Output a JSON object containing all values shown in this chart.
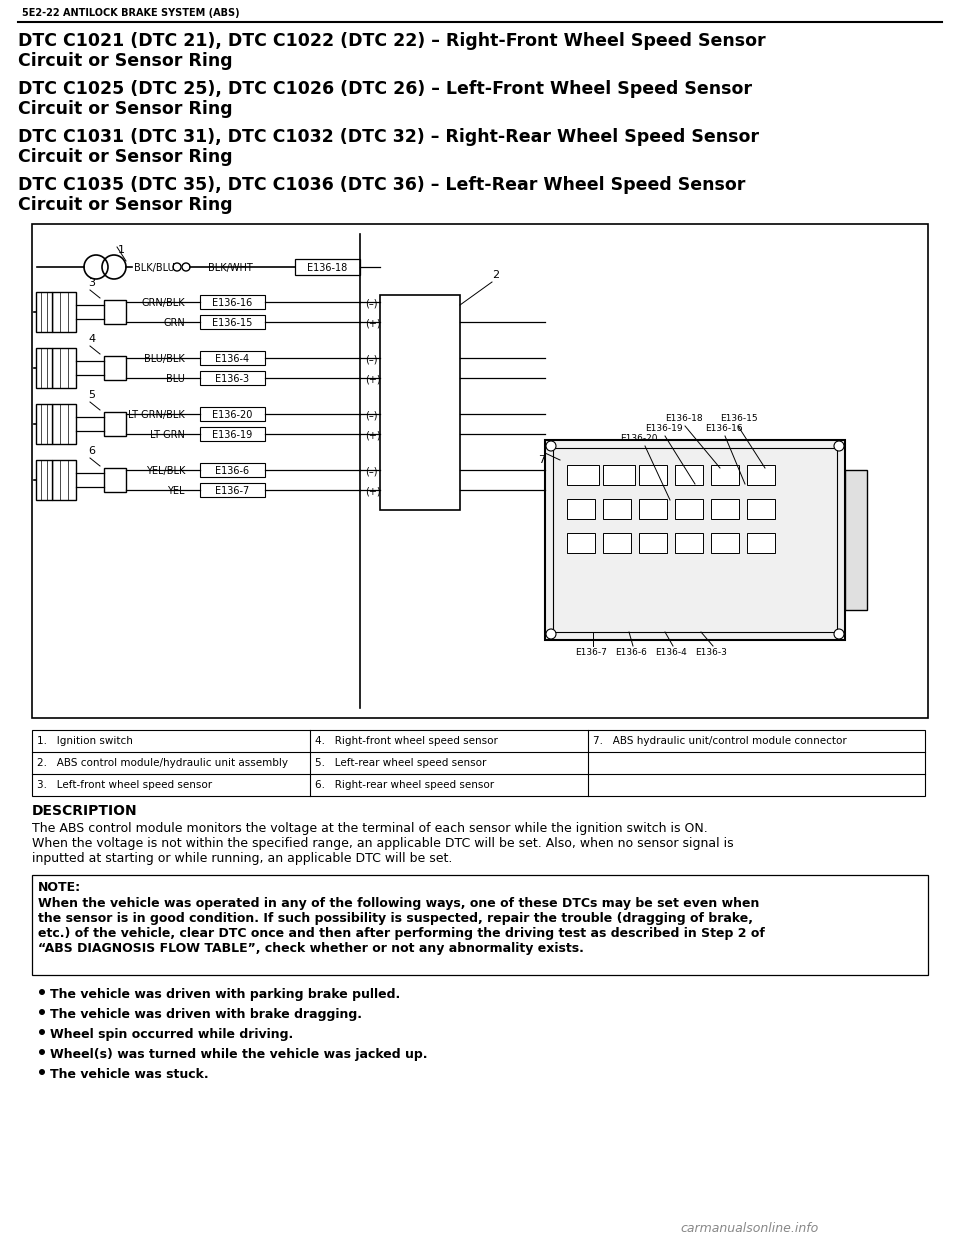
{
  "header_text": "5E2-22 ANTILOCK BRAKE SYSTEM (ABS)",
  "title1_line1": "DTC C1021 (DTC 21), DTC C1022 (DTC 22) – Right-Front Wheel Speed Sensor",
  "title1_line2": "Circuit or Sensor Ring",
  "title2_line1": "DTC C1025 (DTC 25), DTC C1026 (DTC 26) – Left-Front Wheel Speed Sensor",
  "title2_line2": "Circuit or Sensor Ring",
  "title3_line1": "DTC C1031 (DTC 31), DTC C1032 (DTC 32) – Right-Rear Wheel Speed Sensor",
  "title3_line2": "Circuit or Sensor Ring",
  "title4_line1": "DTC C1035 (DTC 35), DTC C1036 (DTC 36) – Left-Rear Wheel Speed Sensor",
  "title4_line2": "Circuit or Sensor Ring",
  "description_heading": "DESCRIPTION",
  "description_line1": "The ABS control module monitors the voltage at the terminal of each sensor while the ignition switch is ON.",
  "description_line2": "When the voltage is not within the specified range, an applicable DTC will be set. Also, when no sensor signal is",
  "description_line3": "inputted at starting or while running, an applicable DTC will be set.",
  "note_heading": "NOTE:",
  "note_line1": "When the vehicle was operated in any of the following ways, one of these DTCs may be set even when",
  "note_line2": "the sensor is in good condition. If such possibility is suspected, repair the trouble (dragging of brake,",
  "note_line3": "etc.) of the vehicle, clear DTC once and then after performing the driving test as described in Step 2 of",
  "note_line4": "“ABS DIAGNOSIS FLOW TABLE”, check whether or not any abnormality exists.",
  "bullet_points": [
    "The vehicle was driven with parking brake pulled.",
    "The vehicle was driven with brake dragging.",
    "Wheel spin occurred while driving.",
    "Wheel(s) was turned while the vehicle was jacked up.",
    "The vehicle was stuck."
  ],
  "table_col1": [
    "1.   Ignition switch",
    "2.   ABS control module/hydraulic unit assembly",
    "3.   Left-front wheel speed sensor"
  ],
  "table_col2": [
    "4.   Right-front wheel speed sensor",
    "5.   Left-rear wheel speed sensor",
    "6.   Right-rear wheel speed sensor"
  ],
  "table_col3": [
    "7.   ABS hydraulic unit/control module connector",
    "",
    ""
  ],
  "watermark": "carmanualsonline.info",
  "bg_color": "#ffffff"
}
